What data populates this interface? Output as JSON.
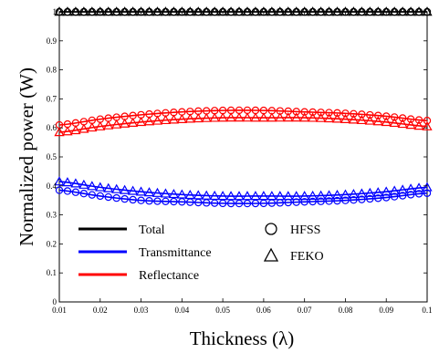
{
  "chart_data": {
    "type": "line",
    "title": "",
    "xlabel": "Thickness (λ)",
    "ylabel": "Normalized power (W)",
    "xlim": [
      0.01,
      0.1
    ],
    "ylim": [
      0,
      1
    ],
    "xticks": [
      "0.01",
      "0.02",
      "0.03",
      "0.04",
      "0.05",
      "0.06",
      "0.07",
      "0.08",
      "0.09",
      "0.1"
    ],
    "yticks": [
      "0",
      "0.1",
      "0.2",
      "0.3",
      "0.4",
      "0.5",
      "0.6",
      "0.7",
      "0.8",
      "0.9",
      "1"
    ],
    "grid": false,
    "legend": {
      "placement": "bottom-left",
      "line_entries": [
        {
          "name": "Total",
          "color": "#000000"
        },
        {
          "name": "Transmittance",
          "color": "#0000ff"
        },
        {
          "name": "Reflectance",
          "color": "#ff0000"
        }
      ],
      "marker_entries": [
        {
          "name": "HFSS",
          "marker": "circle"
        },
        {
          "name": "FEKO",
          "marker": "triangle"
        }
      ]
    },
    "x_samples": [
      0.01,
      0.02,
      0.03,
      0.04,
      0.05,
      0.06,
      0.07,
      0.08,
      0.09,
      0.1
    ],
    "series": [
      {
        "name": "Total",
        "method": "HFSS",
        "color": "#000000",
        "marker": "circle",
        "values": [
          1,
          1,
          1,
          1,
          1,
          1,
          1,
          1,
          1,
          1
        ]
      },
      {
        "name": "Total",
        "method": "FEKO",
        "color": "#000000",
        "marker": "triangle",
        "values": [
          1,
          1,
          1,
          1,
          1,
          1,
          1,
          1,
          1,
          1
        ]
      },
      {
        "name": "Reflectance",
        "method": "HFSS",
        "color": "#ff0000",
        "marker": "circle",
        "values": [
          0.61,
          0.63,
          0.645,
          0.655,
          0.66,
          0.66,
          0.655,
          0.65,
          0.64,
          0.625
        ]
      },
      {
        "name": "Reflectance",
        "method": "FEKO",
        "color": "#ff0000",
        "marker": "triangle",
        "values": [
          0.585,
          0.605,
          0.62,
          0.63,
          0.635,
          0.635,
          0.635,
          0.63,
          0.62,
          0.605
        ]
      },
      {
        "name": "Transmittance",
        "method": "HFSS",
        "color": "#0000ff",
        "marker": "circle",
        "values": [
          0.385,
          0.365,
          0.35,
          0.345,
          0.34,
          0.34,
          0.345,
          0.35,
          0.36,
          0.375
        ]
      },
      {
        "name": "Transmittance",
        "method": "FEKO",
        "color": "#0000ff",
        "marker": "triangle",
        "values": [
          0.415,
          0.395,
          0.38,
          0.37,
          0.365,
          0.365,
          0.365,
          0.37,
          0.38,
          0.395
        ]
      }
    ]
  }
}
